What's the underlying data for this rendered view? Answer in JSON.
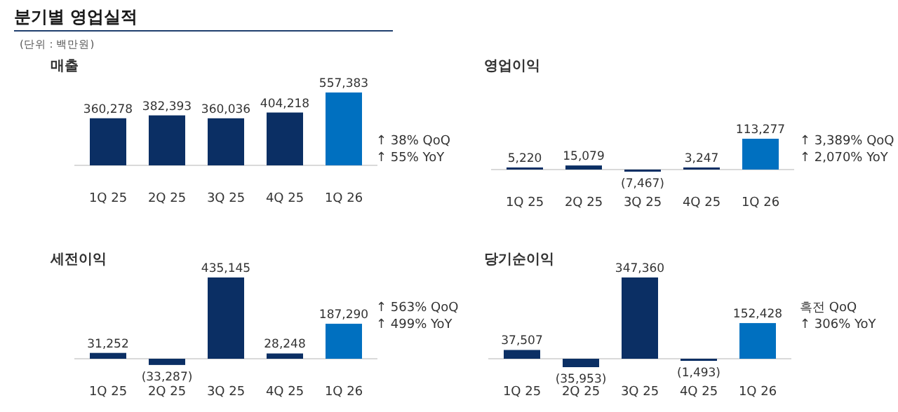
{
  "chart_data": [
    {
      "type": "other",
      "title": "분기별 영업실적",
      "subtitle": "(단위 : 백만원)"
    },
    {
      "type": "bar",
      "title": "매출",
      "categories": [
        "1Q 25",
        "2Q 25",
        "3Q 25",
        "4Q 25",
        "1Q 26"
      ],
      "values": [
        360278,
        382393,
        360036,
        404218,
        557383
      ],
      "value_labels": [
        "360,278",
        "382,393",
        "360,036",
        "404,218",
        "557,383"
      ],
      "colors": [
        "#0b2f64",
        "#0b2f64",
        "#0b2f64",
        "#0b2f64",
        "#0070c0"
      ],
      "annotations": [
        "↑ 38% QoQ",
        "↑ 55% YoY"
      ]
    },
    {
      "type": "bar",
      "title": "영업이익",
      "categories": [
        "1Q 25",
        "2Q 25",
        "3Q 25",
        "4Q 25",
        "1Q 26"
      ],
      "values": [
        5220,
        15079,
        -7467,
        3247,
        113277
      ],
      "value_labels": [
        "5,220",
        "15,079",
        "(7,467)",
        "3,247",
        "113,277"
      ],
      "colors": [
        "#0b2f64",
        "#0b2f64",
        "#0b2f64",
        "#0b2f64",
        "#0070c0"
      ],
      "annotations": [
        "↑ 3,389% QoQ",
        "↑ 2,070% YoY"
      ]
    },
    {
      "type": "bar",
      "title": "세전이익",
      "categories": [
        "1Q 25",
        "2Q 25",
        "3Q 25",
        "4Q 25",
        "1Q 26"
      ],
      "values": [
        31252,
        -33287,
        435145,
        28248,
        187290
      ],
      "value_labels": [
        "31,252",
        "(33,287)",
        "435,145",
        "28,248",
        "187,290"
      ],
      "colors": [
        "#0b2f64",
        "#0b2f64",
        "#0b2f64",
        "#0b2f64",
        "#0070c0"
      ],
      "annotations": [
        "↑ 563% QoQ",
        "↑ 499% YoY"
      ]
    },
    {
      "type": "bar",
      "title": "당기순이익",
      "categories": [
        "1Q 25",
        "2Q 25",
        "3Q 25",
        "4Q 25",
        "1Q 26"
      ],
      "values": [
        37507,
        -35953,
        347360,
        -1493,
        152428
      ],
      "value_labels": [
        "37,507",
        "(35,953)",
        "347,360",
        "(1,493)",
        "152,428"
      ],
      "colors": [
        "#0b2f64",
        "#0b2f64",
        "#0b2f64",
        "#0b2f64",
        "#0070c0"
      ],
      "annotations": [
        "흑전 QoQ",
        "↑ 306% YoY"
      ]
    }
  ]
}
